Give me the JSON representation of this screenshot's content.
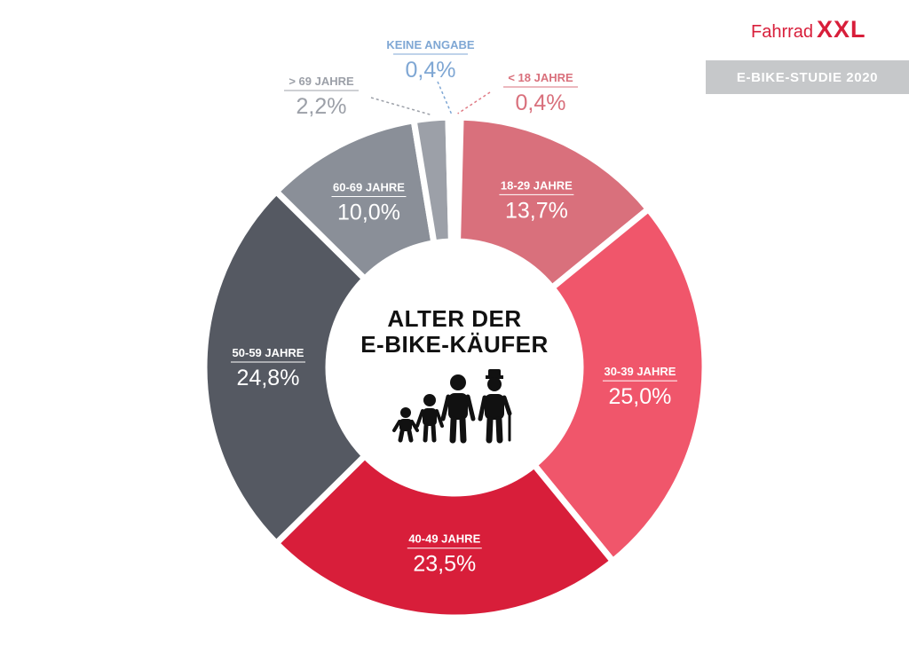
{
  "brand": {
    "name_small": "Fahrrad",
    "name_big": "XXL",
    "color": "#d81e3a"
  },
  "badge": {
    "text": "E-BIKE-STUDIE 2020",
    "color": "#c6c8ca"
  },
  "chart_data": {
    "type": "pie",
    "title": "ALTER DER E-BIKE-KÄUFER",
    "title_lines": [
      "ALTER DER",
      "E-BIKE-KÄUFER"
    ],
    "categories": [
      "< 18 JAHRE",
      "18-29 JAHRE",
      "30-39 JAHRE",
      "40-49 JAHRE",
      "50-59 JAHRE",
      "60-69 JAHRE",
      "> 69 JAHRE",
      "KEINE ANGABE"
    ],
    "values": [
      0.4,
      13.7,
      25.0,
      23.5,
      24.8,
      10.0,
      2.2,
      0.4
    ],
    "value_labels": [
      "0,4%",
      "13,7%",
      "25,0%",
      "23,5%",
      "24,8%",
      "10,0%",
      "2,2%",
      "0,4%"
    ],
    "colors": [
      "#e07b85",
      "#d9707c",
      "#f0566b",
      "#d81e3a",
      "#555962",
      "#8a8f98",
      "#9ca0a8",
      "#7fa7d4"
    ],
    "donut": true,
    "legend": "none",
    "grid": false,
    "center_icon": "family-of-four-ages-icon"
  }
}
